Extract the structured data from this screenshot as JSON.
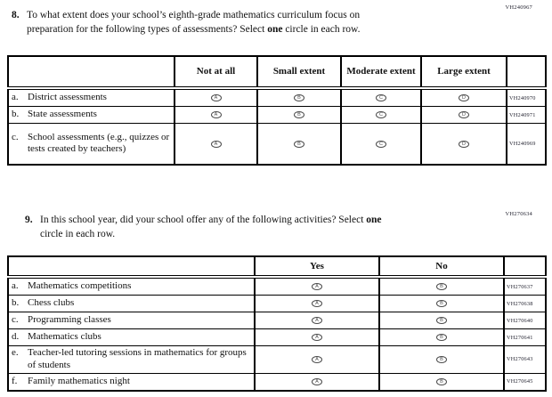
{
  "document": {
    "questions": [
      {
        "number": "8.",
        "vh_code": "VH240967",
        "line1": "To what extent does your school’s eighth-grade mathematics curriculum focus on",
        "line2_pre": "preparation for the following types of assessments? Select ",
        "line2_bold": "one",
        "line2_post": " circle in each row.",
        "table": {
          "headers": [
            "",
            "Not at all",
            "Small extent",
            "Moderate extent",
            "Large extent",
            ""
          ],
          "rows": [
            {
              "letter": "a.",
              "label": "District assessments",
              "bubbles": [
                "A",
                "B",
                "C",
                "D"
              ],
              "code": "VH240970"
            },
            {
              "letter": "b.",
              "label": "State assessments",
              "bubbles": [
                "A",
                "B",
                "C",
                "D"
              ],
              "code": "VH240971"
            },
            {
              "letter": "c.",
              "label": "School assessments (e.g., quizzes or tests created by teachers)",
              "bubbles": [
                "A",
                "B",
                "C",
                "D"
              ],
              "code": "VH240969"
            }
          ]
        }
      },
      {
        "number": "9.",
        "vh_code": "VH270634",
        "line1_pre": "In this school year, did your school offer any of the following activities? Select ",
        "line1_bold": "one",
        "line2": "circle in each row.",
        "table": {
          "headers": [
            "",
            "Yes",
            "No",
            ""
          ],
          "rows": [
            {
              "letter": "a.",
              "label": "Mathematics competitions",
              "bubbles": [
                "A",
                "B"
              ],
              "code": "VH270637"
            },
            {
              "letter": "b.",
              "label": "Chess clubs",
              "bubbles": [
                "A",
                "B"
              ],
              "code": "VH270638"
            },
            {
              "letter": "c.",
              "label": "Programming classes",
              "bubbles": [
                "A",
                "B"
              ],
              "code": "VH270640"
            },
            {
              "letter": "d.",
              "label": "Mathematics clubs",
              "bubbles": [
                "A",
                "B"
              ],
              "code": "VH270641"
            },
            {
              "letter": "e.",
              "label": "Teacher-led tutoring sessions in mathematics for groups of students",
              "bubbles": [
                "A",
                "B"
              ],
              "code": "VH270643"
            },
            {
              "letter": "f.",
              "label": "Family mathematics night",
              "bubbles": [
                "A",
                "B"
              ],
              "code": "VH270645"
            }
          ]
        }
      }
    ]
  }
}
